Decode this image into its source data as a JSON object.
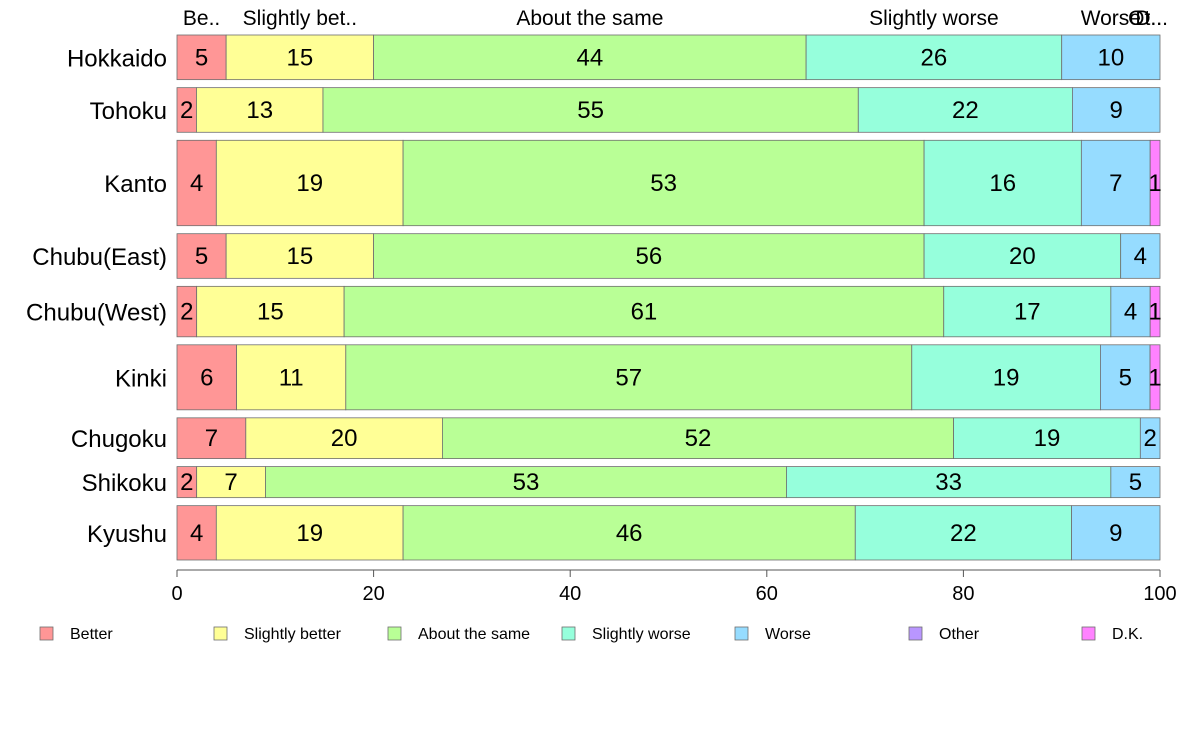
{
  "chart_data": {
    "type": "bar",
    "orientation": "horizontal",
    "stacked": true,
    "categories": [
      "Hokkaido",
      "Tohoku",
      "Kanto",
      "Chubu(East)",
      "Chubu(West)",
      "Kinki",
      "Chugoku",
      "Shikoku",
      "Kyushu"
    ],
    "category_shares": [
      0.046,
      0.046,
      0.088,
      0.046,
      0.052,
      0.067,
      0.042,
      0.032,
      0.056
    ],
    "top_labels": [
      "Be..",
      "Slightly bet..",
      "About the same",
      "Slightly worse",
      "Worse",
      "Ot..",
      "D..."
    ],
    "series": [
      {
        "name": "Better",
        "color": "#ff9696",
        "values": [
          5,
          2,
          4,
          5,
          2,
          6,
          7,
          2,
          4
        ],
        "labels": [
          "5",
          "2",
          "4",
          "5",
          "2",
          "6",
          "7",
          "2",
          "4"
        ]
      },
      {
        "name": "Slightly better",
        "color": "#ffff96",
        "values": [
          15,
          13,
          19,
          15,
          15,
          11,
          20,
          7,
          19
        ],
        "labels": [
          "15",
          "13",
          "19",
          "15",
          "15",
          "11",
          "20",
          "7",
          "19"
        ]
      },
      {
        "name": "About the same",
        "color": "#b9ff96",
        "values": [
          44,
          55,
          53,
          56,
          61,
          57,
          52,
          53,
          46
        ],
        "labels": [
          "44",
          "55",
          "53",
          "56",
          "61",
          "57",
          "52",
          "53",
          "46"
        ]
      },
      {
        "name": "Slightly worse",
        "color": "#96ffdc",
        "values": [
          26,
          22,
          16,
          20,
          17,
          19,
          19,
          33,
          22
        ],
        "labels": [
          "26",
          "22",
          "16",
          "20",
          "17",
          "19",
          "19",
          "33",
          "22"
        ]
      },
      {
        "name": "Worse",
        "color": "#96dcff",
        "values": [
          10,
          9,
          7,
          4,
          4,
          5,
          2,
          5,
          9
        ],
        "labels": [
          "10",
          "9",
          "7",
          "4",
          "4",
          "5",
          "2",
          "5",
          "9"
        ]
      },
      {
        "name": "Other",
        "color": "#b996ff",
        "values": [
          0,
          0,
          0,
          0,
          0,
          0,
          0,
          0,
          0
        ],
        "labels": [
          "",
          "",
          "",
          "",
          "",
          "",
          "",
          "",
          ""
        ]
      },
      {
        "name": "D.K.",
        "color": "#ff82ff",
        "values": [
          0,
          0,
          1,
          0,
          1,
          1,
          0,
          0,
          0
        ],
        "labels": [
          "",
          "",
          "1",
          "",
          "1",
          "1",
          "",
          "",
          ""
        ]
      }
    ],
    "xlim": [
      0,
      100
    ],
    "xticks": [
      0,
      20,
      40,
      60,
      80,
      100
    ],
    "xtick_labels": [
      "0",
      "20",
      "40",
      "60",
      "80",
      "100"
    ],
    "legend": [
      "Better",
      "Slightly better",
      "About the same",
      "Slightly worse",
      "Worse",
      "Other",
      "D.K."
    ],
    "legend_position": "bottom",
    "grid": false
  }
}
